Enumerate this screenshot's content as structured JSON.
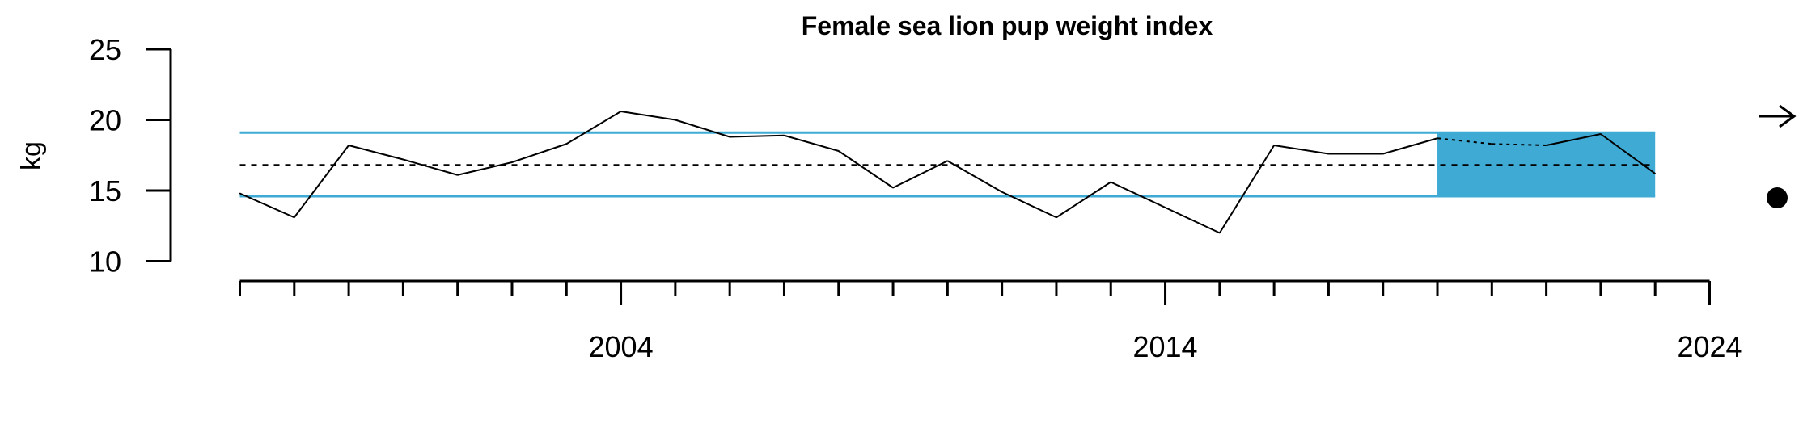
{
  "chart_data": {
    "type": "line",
    "title": "Female sea lion pup weight index",
    "ylabel": "kg",
    "xlabel": "",
    "ylim": [
      10,
      25
    ],
    "yticks": [
      10,
      15,
      20,
      25
    ],
    "xlim": [
      1997,
      2024
    ],
    "xticks_labeled": [
      2004,
      2014,
      2024
    ],
    "x": [
      1997,
      1998,
      1999,
      2000,
      2001,
      2002,
      2003,
      2004,
      2005,
      2006,
      2007,
      2008,
      2009,
      2010,
      2011,
      2012,
      2013,
      2014,
      2015,
      2016,
      2017,
      2018,
      2019,
      2020,
      2021,
      2022,
      2023
    ],
    "y": [
      14.8,
      13.1,
      18.2,
      17.2,
      16.1,
      17.0,
      18.3,
      20.6,
      20.0,
      18.8,
      18.9,
      17.8,
      15.2,
      17.1,
      14.9,
      13.1,
      15.6,
      13.8,
      12.0,
      18.2,
      17.6,
      17.6,
      18.7,
      18.3,
      18.2,
      19.0,
      16.2
    ],
    "mean": 16.8,
    "upper_sd": 19.1,
    "lower_sd": 14.6,
    "highlight_start": 2019,
    "highlight_end": 2023,
    "colors": {
      "band": "#3fabd5",
      "series": "#000000"
    },
    "trend_symbol": "right-arrow-icon",
    "status_symbol": "filled-circle-icon"
  }
}
